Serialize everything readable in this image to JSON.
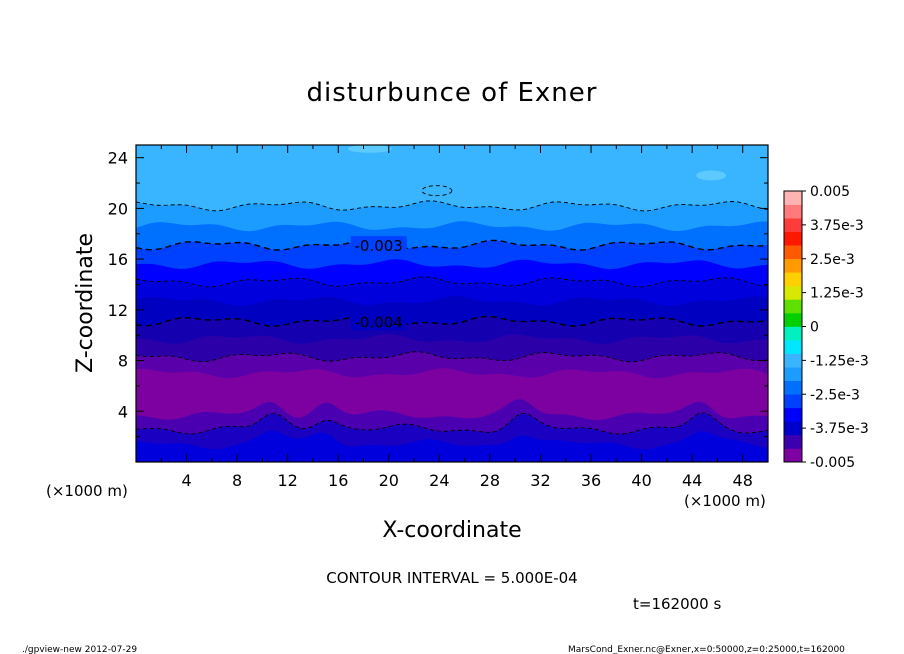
{
  "chart_data": {
    "type": "heatmap",
    "subtype": "filled-contour",
    "title": "disturbunce of Exner",
    "xlabel": "X-coordinate",
    "ylabel": "Z-coordinate",
    "x_unit_label": "(×1000 m)",
    "y_unit_label": "(×1000 m)",
    "xlim": [
      0,
      50
    ],
    "ylim": [
      0,
      25
    ],
    "x_ticks": [
      4,
      8,
      12,
      16,
      20,
      24,
      28,
      32,
      36,
      40,
      44,
      48
    ],
    "y_ticks": [
      4,
      8,
      12,
      16,
      20,
      24
    ],
    "contour_interval_text": "CONTOUR INTERVAL = 5.000E-04",
    "time_text": "t=162000 s",
    "colorbar": {
      "range": [
        -0.005,
        0.005
      ],
      "tick_labels": [
        "0.005",
        "3.75e-3",
        "2.5e-3",
        "1.25e-3",
        "0",
        "-1.25e-3",
        "-2.5e-3",
        "-3.75e-3",
        "-0.005"
      ],
      "tick_values": [
        0.005,
        0.00375,
        0.0025,
        0.00125,
        0,
        -0.00125,
        -0.0025,
        -0.00375,
        -0.005
      ],
      "colors": [
        "#7d00a0",
        "#3d00b0",
        "#0000cc",
        "#0000ff",
        "#0040ff",
        "#0070ff",
        "#1c9cff",
        "#39b4ff",
        "#00e6ff",
        "#00f0c0",
        "#00d000",
        "#60e000",
        "#d8e800",
        "#ffd000",
        "#ff9a00",
        "#ff5a00",
        "#ff1800",
        "#ff3c3c",
        "#ff7a7a",
        "#ffb4b4"
      ]
    },
    "bands": [
      {
        "z_top": 25.0,
        "value": -0.00225,
        "color": "#39b4ff"
      },
      {
        "z_top": 20.2,
        "value": -0.00275,
        "color": "#1c9cff"
      },
      {
        "z_top": 18.6,
        "value": -0.00325,
        "color": "#0070ff"
      },
      {
        "z_top": 17.1,
        "value": -0.00375,
        "color": "#0040ff"
      },
      {
        "z_top": 15.6,
        "value": -0.00425,
        "color": "#0000ff"
      },
      {
        "z_top": 14.2,
        "value": -0.00475,
        "color": "#0000dd"
      },
      {
        "z_top": 12.7,
        "value": -0.005,
        "color": "#0000c0"
      },
      {
        "z_top": 11.1,
        "value": -0.005,
        "color": "#1500b0"
      },
      {
        "z_top": 9.7,
        "value": -0.005,
        "color": "#2c00a8"
      },
      {
        "z_top": 8.3,
        "value": -0.005,
        "color": "#5a00aa"
      },
      {
        "z_top": 7.0,
        "value": -0.005,
        "color": "#7d00a0"
      },
      {
        "z_top": 3.7,
        "value": -0.005,
        "color": "#4a00b0"
      },
      {
        "z_top": 2.6,
        "value": -0.005,
        "color": "#1a00c0"
      },
      {
        "z_top": 1.4,
        "value": -0.005,
        "color": "#0000dd"
      }
    ],
    "contour_lines": [
      {
        "z": 20.2,
        "style": "dashed-thin",
        "label": ""
      },
      {
        "z": 17.1,
        "style": "dashed",
        "label": "-0.003"
      },
      {
        "z": 14.2,
        "style": "dashed-thin",
        "label": ""
      },
      {
        "z": 11.1,
        "style": "dashed",
        "label": "-0.004"
      },
      {
        "z": 8.3,
        "style": "dashed-thin",
        "label": ""
      },
      {
        "z": 2.6,
        "style": "dashed-thin",
        "label": ""
      }
    ]
  },
  "footer": {
    "left": "./gpview-new   2012-07-29",
    "right": "MarsCond_Exner.nc@Exner,x=0:50000,z=0:25000,t=162000"
  }
}
